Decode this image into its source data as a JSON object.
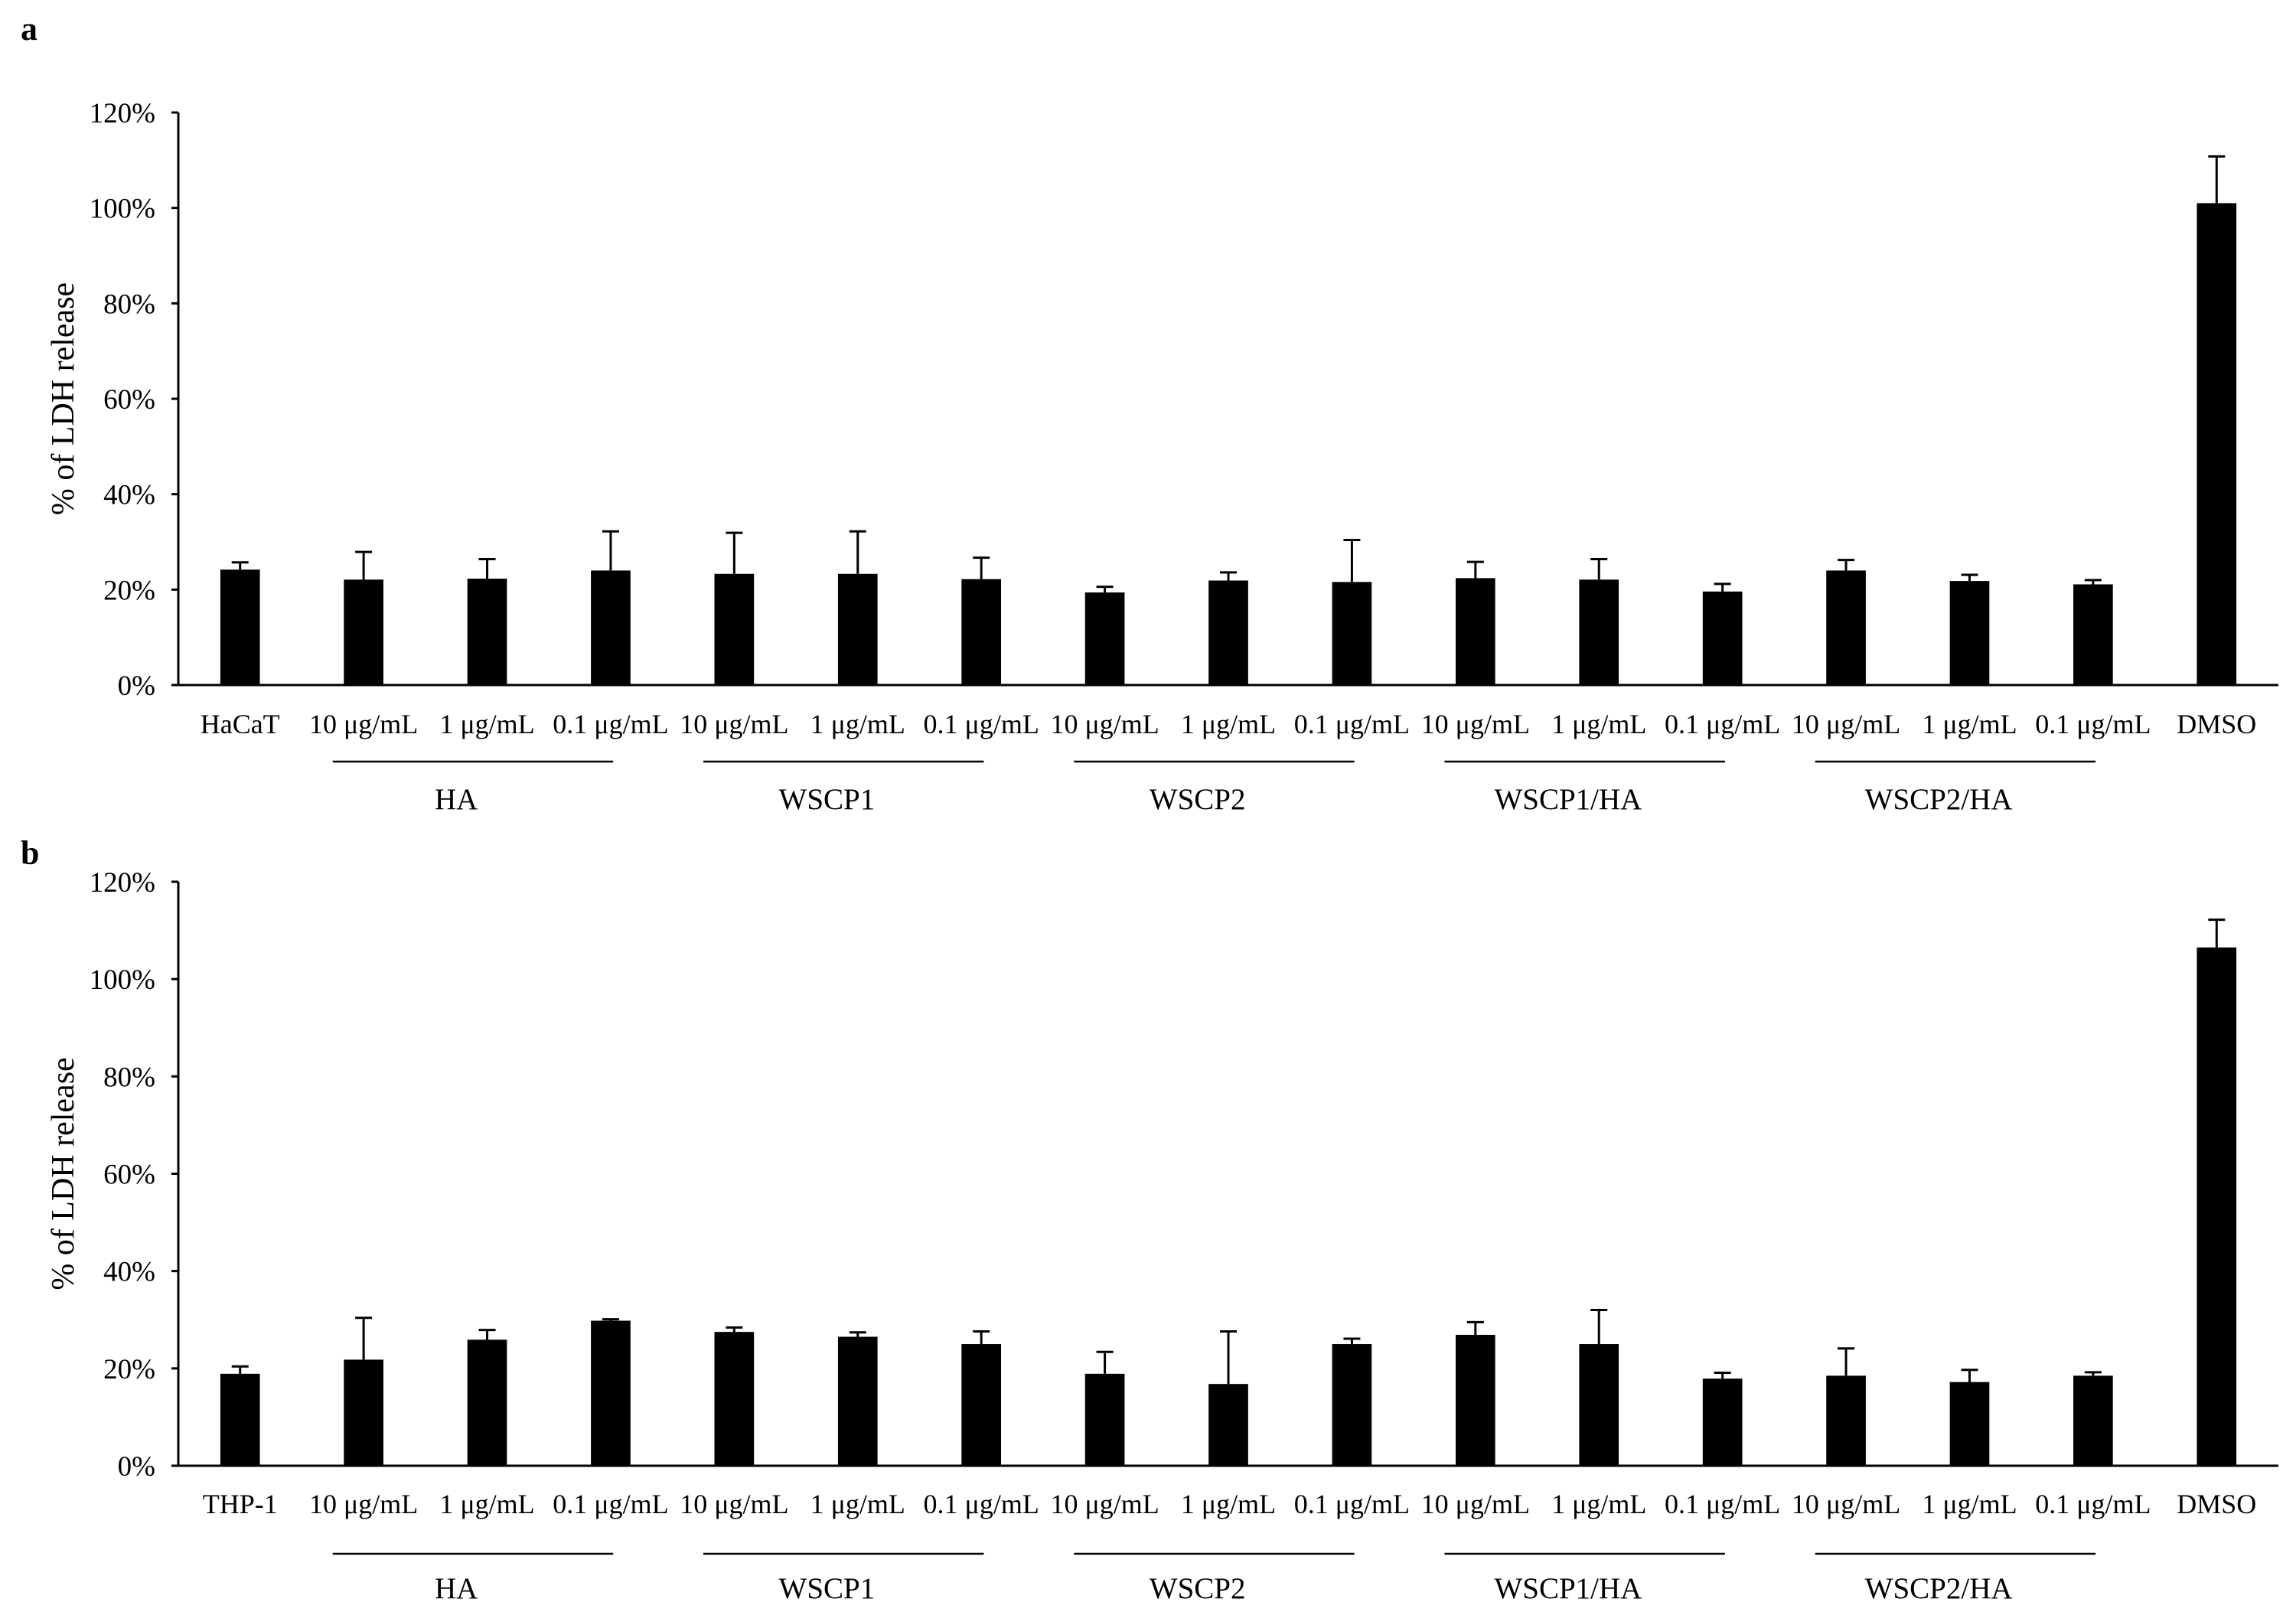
{
  "chart_data": [
    {
      "type": "bar",
      "panel_label": "a",
      "ylabel": "% of LDH release",
      "ylim": [
        0,
        120
      ],
      "y_ticks": [
        0,
        20,
        40,
        60,
        80,
        100,
        120
      ],
      "y_tick_labels": [
        "0%",
        "20%",
        "40%",
        "60%",
        "80%",
        "100%",
        "120%"
      ],
      "categories": [
        "HaCaT",
        "10 μg/mL",
        "1 μg/mL",
        "0.1 μg/mL",
        "10 μg/mL",
        "1 μg/mL",
        "0.1 μg/mL",
        "10 μg/mL",
        "1 μg/mL",
        "0.1 μg/mL",
        "10 μg/mL",
        "1 μg/mL",
        "0.1 μg/mL",
        "10 μg/mL",
        "1 μg/mL",
        "0.1 μg/mL",
        "DMSO"
      ],
      "groups": [
        {
          "label": "HA",
          "categories": [
            1,
            2,
            3
          ]
        },
        {
          "label": "WSCP1",
          "categories": [
            4,
            5,
            6
          ]
        },
        {
          "label": "WSCP2",
          "categories": [
            7,
            8,
            9
          ]
        },
        {
          "label": "WSCP1/HA",
          "categories": [
            10,
            11,
            12
          ]
        },
        {
          "label": "WSCP2/HA",
          "categories": [
            13,
            14,
            15
          ]
        }
      ],
      "series": [
        {
          "values": [
            24.2,
            22.1,
            22.3,
            24.0,
            23.3,
            23.3,
            22.2,
            19.4,
            21.9,
            21.6,
            22.4,
            22.1,
            19.6,
            24.0,
            21.8,
            21.1,
            101.0
          ],
          "error_plus": [
            1.5,
            5.8,
            4.1,
            8.2,
            8.6,
            8.9,
            4.5,
            1.2,
            1.7,
            8.8,
            3.4,
            4.3,
            1.6,
            2.2,
            1.3,
            0.9,
            9.8
          ]
        }
      ],
      "bar_color": "#000000",
      "grid": false,
      "legend": false
    },
    {
      "type": "bar",
      "panel_label": "b",
      "ylabel": "% of LDH release",
      "ylim": [
        0,
        120
      ],
      "y_ticks": [
        0,
        20,
        40,
        60,
        80,
        100,
        120
      ],
      "y_tick_labels": [
        "0%",
        "20%",
        "40%",
        "60%",
        "80%",
        "100%",
        "120%"
      ],
      "categories": [
        "THP-1",
        "10 μg/mL",
        "1 μg/mL",
        "0.1 μg/mL",
        "10 μg/mL",
        "1 μg/mL",
        "0.1 μg/mL",
        "10 μg/mL",
        "1 μg/mL",
        "0.1 μg/mL",
        "10 μg/mL",
        "1 μg/mL",
        "0.1 μg/mL",
        "10 μg/mL",
        "1 μg/mL",
        "0.1 μg/mL",
        "DMSO"
      ],
      "groups": [
        {
          "label": "HA",
          "categories": [
            1,
            2,
            3
          ]
        },
        {
          "label": "WSCP1",
          "categories": [
            4,
            5,
            6
          ]
        },
        {
          "label": "WSCP2",
          "categories": [
            7,
            8,
            9
          ]
        },
        {
          "label": "WSCP1/HA",
          "categories": [
            10,
            11,
            12
          ]
        },
        {
          "label": "WSCP2/HA",
          "categories": [
            13,
            14,
            15
          ]
        }
      ],
      "series": [
        {
          "values": [
            18.9,
            21.8,
            25.9,
            29.8,
            27.5,
            26.5,
            25.0,
            18.9,
            16.8,
            25.0,
            26.9,
            25.0,
            17.9,
            18.5,
            17.2,
            18.5,
            106.5
          ],
          "error_plus": [
            1.5,
            8.6,
            2.0,
            0.3,
            0.9,
            0.9,
            2.6,
            4.5,
            10.8,
            1.1,
            2.6,
            7.0,
            1.2,
            5.6,
            2.5,
            0.7,
            5.7
          ]
        }
      ],
      "bar_color": "#000000",
      "grid": false,
      "legend": false
    }
  ]
}
